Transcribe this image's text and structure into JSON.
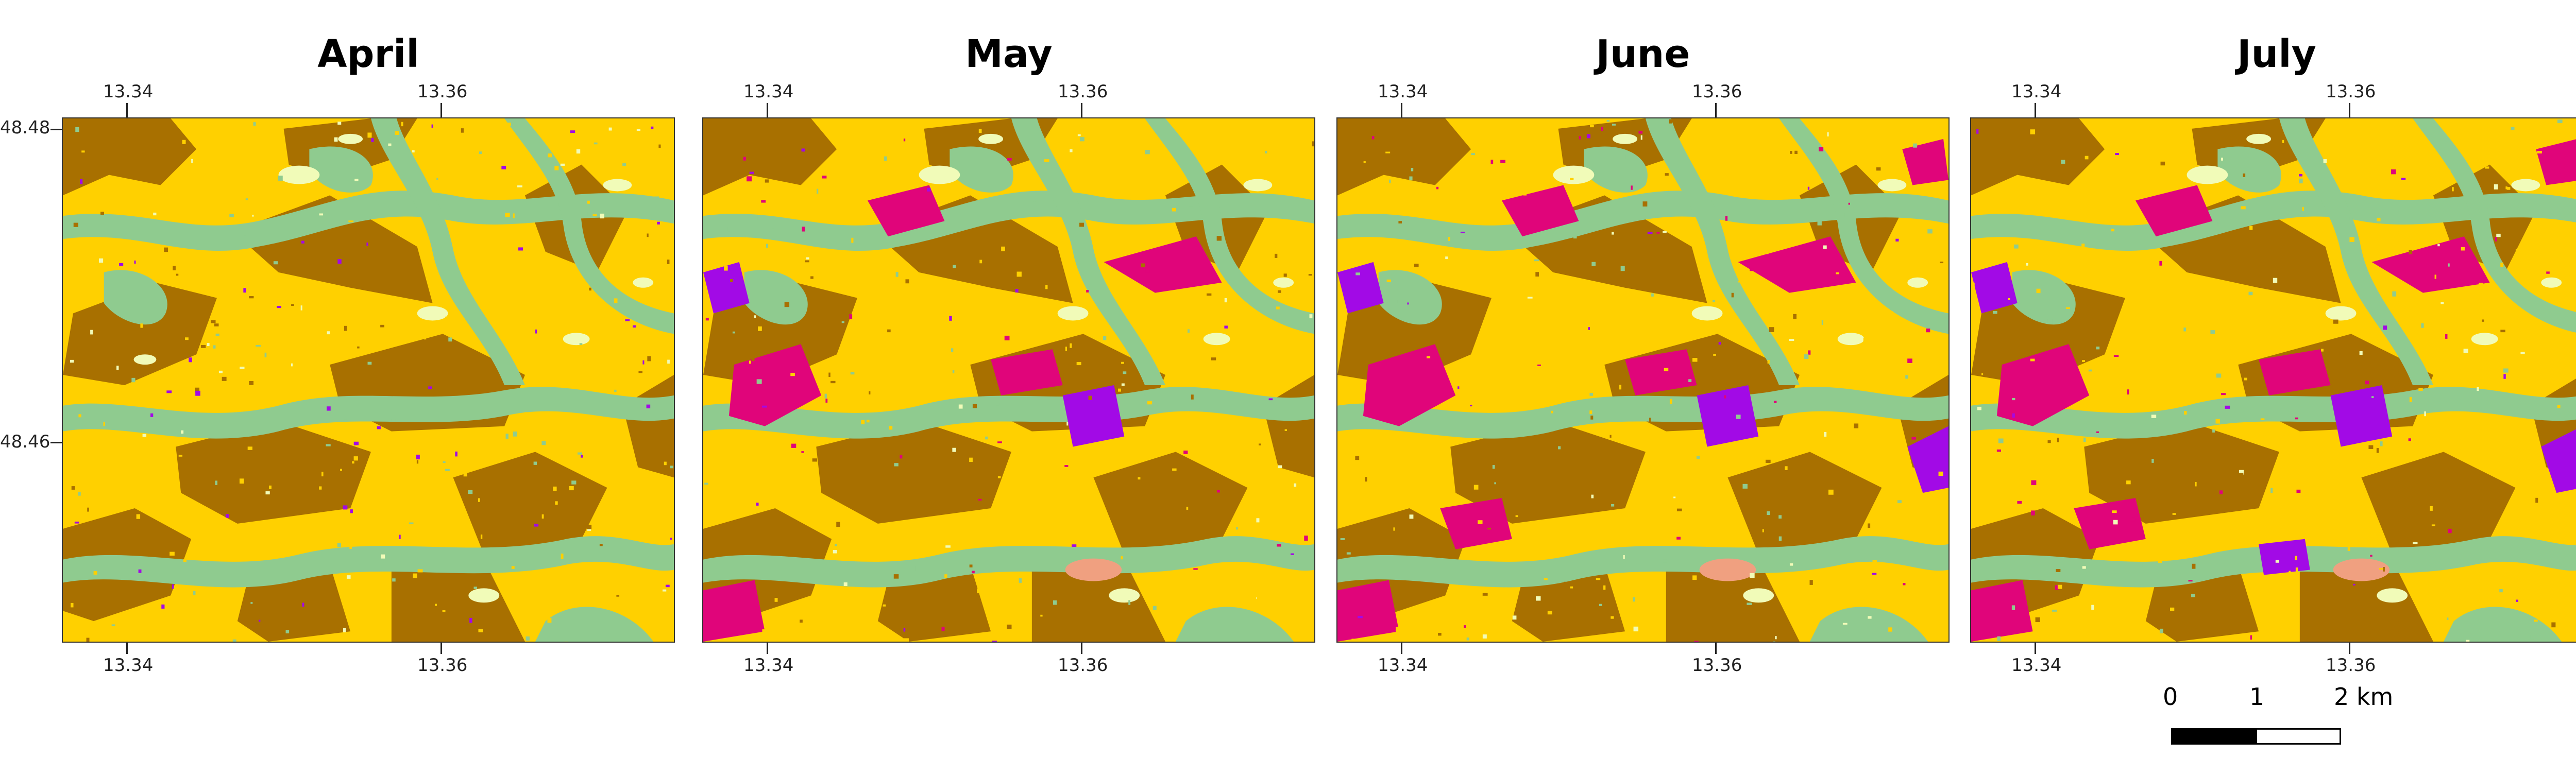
{
  "panels": [
    {
      "title": "April",
      "mode": 0
    },
    {
      "title": "May",
      "mode": 1
    },
    {
      "title": "June",
      "mode": 2
    },
    {
      "title": "July",
      "mode": 3
    }
  ],
  "axes": {
    "lon_ticks": [
      "13.34",
      "13.36"
    ],
    "lat_ticks": [
      "48.48",
      "48.46"
    ]
  },
  "legend_colors": {
    "brown": "#A87000",
    "yellow": "#FFD000",
    "green": "#8FCB8F",
    "pale": "#F1FBB8",
    "magenta": "#E0057A",
    "purple": "#A20AE6",
    "salmon": "#F0A080"
  },
  "scale_bar": {
    "labels": [
      "0",
      "1",
      "2 km"
    ]
  },
  "north_arrow": {
    "icon": "north-arrow-icon"
  }
}
